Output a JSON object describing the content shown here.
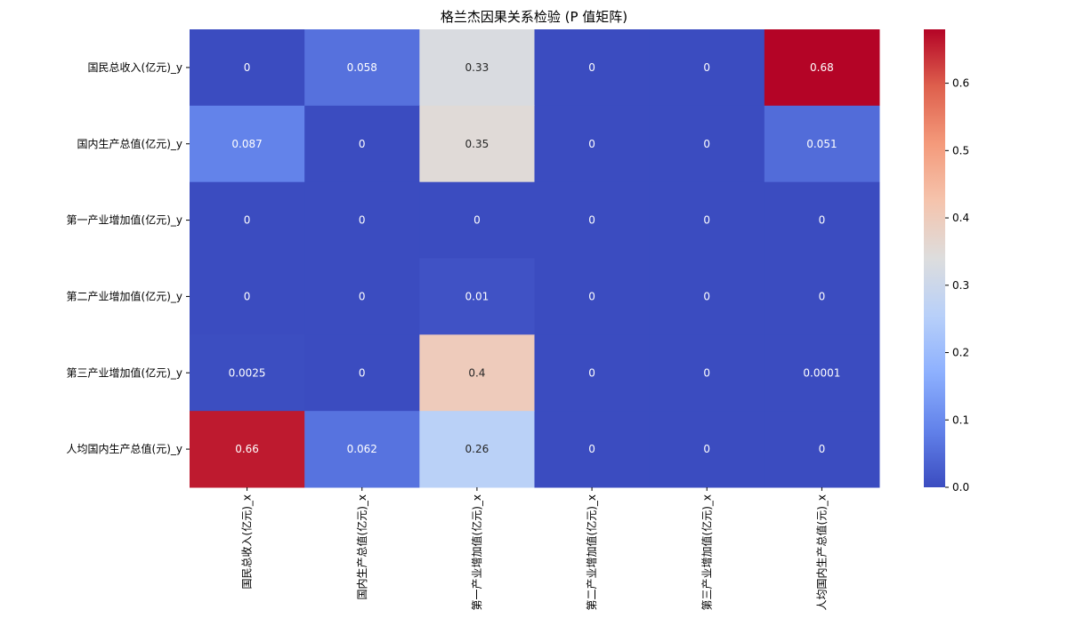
{
  "chart_data": {
    "type": "heatmap",
    "title": "格兰杰因果关系检验 (P 值矩阵)",
    "colormap": "coolwarm",
    "color_range": [
      0,
      0.68
    ],
    "row_labels": [
      "国民总收入(亿元)_y",
      "国内生产总值(亿元)_y",
      "第一产业增加值(亿元)_y",
      "第二产业增加值(亿元)_y",
      "第三产业增加值(亿元)_y",
      "人均国内生产总值(元)_y"
    ],
    "col_labels": [
      "国民总收入(亿元)_x",
      "国内生产总值(亿元)_x",
      "第一产业增加值(亿元)_x",
      "第二产业增加值(亿元)_x",
      "第三产业增加值(亿元)_x",
      "人均国内生产总值(元)_x"
    ],
    "values": [
      [
        0,
        0.058,
        0.33,
        0,
        0,
        0.68
      ],
      [
        0.087,
        0,
        0.35,
        0,
        0,
        0.051
      ],
      [
        0,
        0,
        0,
        0,
        0,
        0
      ],
      [
        0,
        0,
        0.01,
        0,
        0,
        0
      ],
      [
        0.0025,
        0,
        0.4,
        0,
        0,
        0.0001
      ],
      [
        0.66,
        0.062,
        0.26,
        0,
        0,
        0
      ]
    ],
    "value_labels": [
      [
        "0",
        "0.058",
        "0.33",
        "0",
        "0",
        "0.68"
      ],
      [
        "0.087",
        "0",
        "0.35",
        "0",
        "0",
        "0.051"
      ],
      [
        "0",
        "0",
        "0",
        "0",
        "0",
        "0"
      ],
      [
        "0",
        "0",
        "0.01",
        "0",
        "0",
        "0"
      ],
      [
        "0.0025",
        "0",
        "0.4",
        "0",
        "0",
        "0.0001"
      ],
      [
        "0.66",
        "0.062",
        "0.26",
        "0",
        "0",
        "0"
      ]
    ],
    "colorbar": {
      "ticks": [
        0.0,
        0.1,
        0.2,
        0.3,
        0.4,
        0.5,
        0.6
      ],
      "tick_labels": [
        "0.0",
        "0.1",
        "0.2",
        "0.3",
        "0.4",
        "0.5",
        "0.6"
      ]
    }
  }
}
